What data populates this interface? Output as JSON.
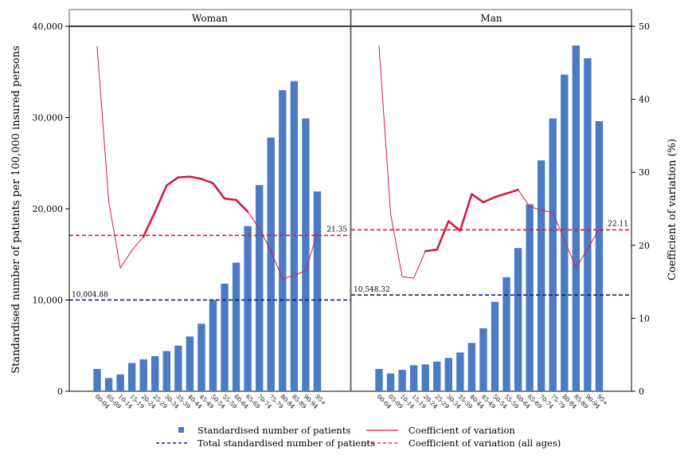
{
  "chart_data": {
    "type": "bar",
    "categories": [
      "00-04",
      "05-09",
      "10-14",
      "15-19",
      "20-24",
      "25-29",
      "30-34",
      "35-39",
      "40-44",
      "45-49",
      "50-54",
      "55-59",
      "60-64",
      "65-69",
      "70-74",
      "75-79",
      "80-84",
      "85-89",
      "90-94",
      "95+"
    ],
    "y_left_label": "Standardised number of patients per 100,000 insured persons",
    "y_right_label": "Coefficient of variation (%)",
    "y_left_lim": [
      0,
      40000
    ],
    "y_right_lim": [
      0,
      50
    ],
    "y_left_ticks": [
      {
        "value": 0,
        "label": "0"
      },
      {
        "value": 10000,
        "label": "10,000"
      },
      {
        "value": 20000,
        "label": "20,000"
      },
      {
        "value": 30000,
        "label": "30,000"
      },
      {
        "value": 40000,
        "label": "40,000"
      }
    ],
    "y_right_ticks": [
      {
        "value": 0,
        "label": "0"
      },
      {
        "value": 10,
        "label": "10"
      },
      {
        "value": 20,
        "label": "20"
      },
      {
        "value": 30,
        "label": "30"
      },
      {
        "value": 40,
        "label": "40"
      },
      {
        "value": 50,
        "label": "50"
      }
    ],
    "colors": {
      "bars": "#4a7bc4",
      "cv": "#d41b45",
      "total": "#1a1a7a",
      "panel_border": "#666666"
    },
    "panels": [
      {
        "title": "Woman",
        "patients": [
          2450,
          1450,
          1850,
          3100,
          3500,
          3850,
          4400,
          5000,
          6000,
          7400,
          10000,
          11800,
          14100,
          18100,
          22600,
          27800,
          33000,
          34000,
          29900,
          21900
        ],
        "cv": [
          47.2,
          26.0,
          16.9,
          19.3,
          21.2,
          24.6,
          28.2,
          29.3,
          29.4,
          29.1,
          28.5,
          26.4,
          26.2,
          24.6,
          22.3,
          19.2,
          15.4,
          15.9,
          16.5,
          21.7
        ],
        "total": 10004.88,
        "total_label": "10,004.88",
        "cv_all": 21.35,
        "cv_all_label": "21.35"
      },
      {
        "title": "Man",
        "patients": [
          2450,
          1950,
          2350,
          2850,
          2950,
          3250,
          3650,
          4250,
          5300,
          6900,
          9800,
          12500,
          15700,
          20500,
          25300,
          29900,
          34700,
          37900,
          36500,
          29600
        ],
        "cv": [
          47.3,
          24.3,
          15.7,
          15.5,
          19.2,
          19.4,
          23.3,
          22.0,
          27.0,
          25.9,
          26.6,
          27.1,
          27.6,
          25.3,
          24.8,
          24.5,
          20.7,
          16.9,
          19.5,
          22.2
        ],
        "total": 10548.32,
        "total_label": "10,548.32",
        "cv_all": 22.11,
        "cv_all_label": "22.11"
      }
    ],
    "legend": [
      {
        "key": "patients",
        "label": "Standardised number of patients",
        "style": "square"
      },
      {
        "key": "cv",
        "label": "Coefficient of variation",
        "style": "solid-line"
      },
      {
        "key": "total",
        "label": "Total standardised number of patients",
        "style": "dashed-line"
      },
      {
        "key": "cv_all",
        "label": "Coefficient of variation (all ages)",
        "style": "dashed-line"
      }
    ],
    "legend_placement": "bottom"
  }
}
